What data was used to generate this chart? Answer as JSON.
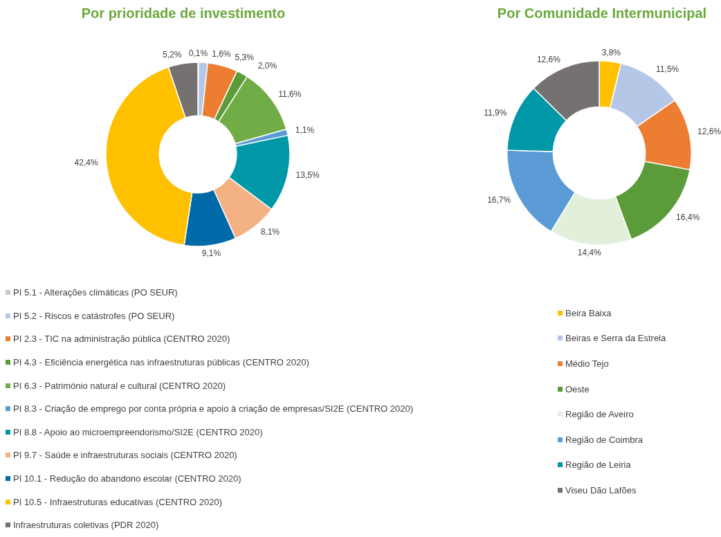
{
  "chart_data": [
    {
      "type": "donut",
      "title": "Por prioridade de investimento",
      "categories": [
        "PI 5.1 - Alterações climáticas (PO SEUR)",
        "PI 5.2 - Riscos e catástrofes (PO SEUR)",
        "PI 2.3 - TIC na administração pública (CENTRO 2020)",
        "PI 4.3 - Eficiência energética nas infraestruturas públicas (CENTRO 2020)",
        "PI 6.3 - Património natural e cultural (CENTRO 2020)",
        "PI 8.3 - Criação de emprego por conta própria e apoio à criação de empresas/SI2E (CENTRO 2020)",
        "PI 8.8 - Apoio ao microempreendorismo/SI2E (CENTRO 2020)",
        "PI 9.7 - Saúde e infraestruturas sociais (CENTRO 2020)",
        "PI 10.1 - Redução do abandono escolar (CENTRO 2020)",
        "PI 10.5 - Infraestruturas educativas (CENTRO 2020)",
        "Infraestruturas coletivas (PDR 2020)"
      ],
      "values": [
        0.1,
        1.6,
        5.3,
        2.0,
        11.6,
        1.1,
        13.5,
        8.1,
        9.1,
        42.4,
        5.2
      ],
      "value_labels": [
        "0,1%",
        "1,6%",
        "5,3%",
        "2,0%",
        "11,6%",
        "1,1%",
        "13,5%",
        "8,1%",
        "9,1%",
        "42,4%",
        "5,2%"
      ],
      "colors": [
        "#c9c9c9",
        "#b4c7e7",
        "#ed7d31",
        "#5b9b3a",
        "#70ad47",
        "#5b9bd5",
        "#0097a7",
        "#f4b183",
        "#006aa8",
        "#ffc000",
        "#767171"
      ],
      "legend": "bottom"
    },
    {
      "type": "donut",
      "title": "Por Comunidade Intermunicipal",
      "categories": [
        "Beira Baixa",
        "Beiras e Serra da Estrela",
        "Médio Tejo",
        "Oeste",
        "Região de Aveiro",
        "Região de Coimbra",
        "Região de Leiria",
        "Viseu Dão Lafões"
      ],
      "values": [
        3.8,
        11.5,
        12.6,
        16.4,
        14.4,
        16.7,
        11.9,
        12.6
      ],
      "value_labels": [
        "3,8%",
        "11,5%",
        "12,6%",
        "16,4%",
        "14,4%",
        "16,7%",
        "11,9%",
        "12,6%"
      ],
      "colors": [
        "#ffc000",
        "#b4c7e7",
        "#ed7d31",
        "#5b9b3a",
        "#e2efda",
        "#5b9bd5",
        "#0097a7",
        "#767171"
      ],
      "legend": "bottom"
    }
  ]
}
